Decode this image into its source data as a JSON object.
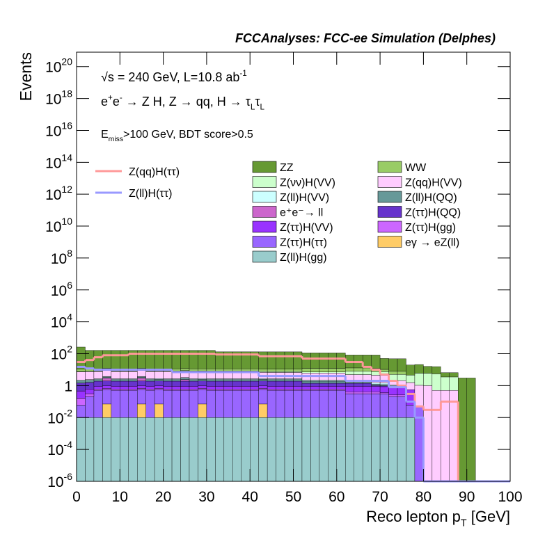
{
  "chart_data": {
    "type": "histogram",
    "title": "FCCAnalyses: FCC-ee Simulation (Delphes)",
    "annotations": [
      {
        "parts": [
          {
            "text": "√s = 240 GeV, L=10.8 ab"
          },
          {
            "text": "-1",
            "sup": true
          }
        ]
      },
      {
        "parts": [
          {
            "text": "e"
          },
          {
            "text": "+",
            "sup": true
          },
          {
            "text": "e"
          },
          {
            "text": "-",
            "sup": true
          },
          {
            "text": " → Z H, Z  → qq, H  → τ"
          },
          {
            "text": "L",
            "sub": true
          },
          {
            "text": "τ"
          },
          {
            "text": "L",
            "sub": true
          }
        ]
      },
      {
        "parts": [
          {
            "text": "E"
          },
          {
            "text": "miss",
            "sub": true
          },
          {
            "text": ">100 GeV, BDT score>0.5"
          }
        ]
      }
    ],
    "xlabel": {
      "parts": [
        {
          "text": "Reco lepton p"
        },
        {
          "text": "T",
          "sub": true
        },
        {
          "text": " [GeV]"
        }
      ]
    },
    "ylabel": "Events",
    "log_y": true,
    "xlim": [
      0,
      100
    ],
    "ylim": [
      1e-06,
      8e+20
    ],
    "xticks": [
      0,
      10,
      20,
      30,
      40,
      50,
      60,
      70,
      80,
      90,
      100
    ],
    "yticks": [
      {
        "value": 1e-06,
        "label": "10",
        "exponent": "-6"
      },
      {
        "value": 0.0001,
        "label": "10",
        "exponent": "-4"
      },
      {
        "value": 0.01,
        "label": "10",
        "exponent": "-2"
      },
      {
        "value": 1,
        "label": "1"
      },
      {
        "value": 100,
        "label": "10",
        "exponent": "2"
      },
      {
        "value": 10000.0,
        "label": "10",
        "exponent": "4"
      },
      {
        "value": 1000000.0,
        "label": "10",
        "exponent": "6"
      },
      {
        "value": 100000000.0,
        "label": "10",
        "exponent": "8"
      },
      {
        "value": 10000000000.0,
        "label": "10",
        "exponent": "10"
      },
      {
        "value": 1000000000000.0,
        "label": "10",
        "exponent": "12"
      },
      {
        "value": 100000000000000.0,
        "label": "10",
        "exponent": "14"
      },
      {
        "value": 1e+16,
        "label": "10",
        "exponent": "16"
      },
      {
        "value": 1e+18,
        "label": "10",
        "exponent": "18"
      },
      {
        "value": 1e+20,
        "label": "10",
        "exponent": "20"
      }
    ],
    "bins": [
      0,
      2,
      4,
      6,
      8,
      10,
      12,
      14,
      16,
      18,
      20,
      22,
      24,
      26,
      28,
      30,
      32,
      34,
      36,
      38,
      40,
      42,
      44,
      46,
      48,
      50,
      52,
      54,
      56,
      58,
      60,
      62,
      64,
      66,
      68,
      70,
      72,
      74,
      76,
      78,
      80,
      82,
      84,
      86,
      88,
      90,
      92,
      94,
      96,
      98,
      100
    ],
    "series": [
      {
        "name": "Z(ll)H(gg)",
        "color": "#99cccc",
        "values": [
          0.01,
          0.01,
          0.01,
          0.01,
          0.01,
          0.01,
          0.01,
          0.01,
          0.01,
          0.01,
          0.01,
          0.01,
          0.01,
          0.01,
          0.01,
          0.01,
          0.01,
          0.01,
          0.01,
          0.01,
          0.01,
          0.01,
          0.01,
          0.01,
          0.01,
          0.01,
          0.01,
          0.01,
          0.01,
          0.01,
          0.01,
          0.01,
          0.01,
          0.01,
          0.01,
          0.01,
          0.01,
          0.01,
          0.01,
          0,
          0,
          0,
          0,
          0,
          0,
          0,
          0,
          0,
          0,
          0
        ]
      },
      {
        "name": "eγ → eZ(ll)",
        "color": "#ffcc66",
        "values": [
          0,
          0,
          0,
          0.06,
          0,
          0,
          0,
          0.06,
          0,
          0.06,
          0,
          0,
          0,
          0,
          0.06,
          0,
          0,
          0,
          0,
          0,
          0,
          0.06,
          0,
          0,
          0,
          0,
          0,
          0,
          0,
          0,
          0,
          0,
          0,
          0,
          0,
          0,
          0,
          0,
          0,
          0,
          0,
          0,
          0,
          0,
          0,
          0,
          0,
          0,
          0,
          0
        ]
      },
      {
        "name": "Z(ττ)H(ττ)",
        "color": "#9966ff",
        "values": [
          0.05,
          0.2,
          0.5,
          0.5,
          0.5,
          0.5,
          0.5,
          0.5,
          0.5,
          0.5,
          0.5,
          0.5,
          0.5,
          0.5,
          0.5,
          0.5,
          0.5,
          0.5,
          0.5,
          0.5,
          0.5,
          0.5,
          0.5,
          0.5,
          0.5,
          0.5,
          0.5,
          0.5,
          0.5,
          0.5,
          0.5,
          0.3,
          0.3,
          0.3,
          0.3,
          0.3,
          0.2,
          0.2,
          0.05,
          0.05,
          0,
          0,
          0,
          0,
          0,
          0,
          0,
          0,
          0,
          0
        ]
      },
      {
        "name": "Z(ττ)H(gg)",
        "color": "#cc66ff",
        "values": [
          0.1,
          0.1,
          0.1,
          0.1,
          0.1,
          0.1,
          0.1,
          0.1,
          0.1,
          0.1,
          0.1,
          0.1,
          0.1,
          0.1,
          0.1,
          0.1,
          0.1,
          0.1,
          0.1,
          0.1,
          0.1,
          0.1,
          0.1,
          0.1,
          0.1,
          0.1,
          0.1,
          0.1,
          0.1,
          0.1,
          0.1,
          0.1,
          0.1,
          0.1,
          0.1,
          0.05,
          0.05,
          0.05,
          0,
          0,
          0,
          0,
          0,
          0,
          0,
          0,
          0,
          0,
          0,
          0
        ]
      },
      {
        "name": "Z(ττ)H(VV)",
        "color": "#9933ff",
        "values": [
          0.3,
          0.3,
          0.3,
          0.3,
          0.3,
          0.3,
          0.3,
          0.3,
          0.3,
          0.3,
          0.3,
          0.3,
          0.3,
          0.3,
          0.3,
          0.3,
          0.3,
          0.3,
          0.3,
          0.3,
          0.3,
          0.3,
          0.3,
          0.3,
          0.3,
          0.3,
          0.3,
          0.3,
          0.3,
          0.3,
          0.3,
          0.5,
          0.5,
          0.5,
          0.5,
          0.5,
          0.5,
          0.5,
          0.5,
          0,
          0,
          0,
          0,
          0,
          0,
          0,
          0,
          0,
          0,
          0
        ]
      },
      {
        "name": "Z(ττ)H(QQ)",
        "color": "#6633cc",
        "values": [
          1,
          1,
          1,
          1,
          1,
          1,
          1,
          1,
          1,
          1,
          1,
          1,
          1,
          1,
          1,
          1,
          1,
          1,
          1,
          1,
          1,
          1,
          1,
          1,
          1,
          1,
          0.5,
          0.5,
          0.5,
          0.5,
          0.5,
          0.5,
          0.5,
          0.5,
          0.1,
          0.1,
          0.1,
          0.1,
          0,
          0,
          0,
          0,
          0,
          0,
          0,
          0,
          0,
          0,
          0,
          0
        ]
      },
      {
        "name": "e⁺e⁻→ ll",
        "color": "#cc66cc",
        "values": [
          0,
          0,
          0,
          1,
          0,
          0,
          0,
          1,
          0,
          0,
          0,
          0,
          0.5,
          0,
          0,
          0,
          0,
          0,
          0,
          0,
          0,
          0,
          0,
          0,
          0,
          0,
          0,
          0,
          0,
          0,
          0,
          0,
          0,
          0,
          0,
          0,
          0,
          0,
          0,
          0,
          0,
          0,
          0,
          0,
          0,
          0,
          0,
          0,
          0,
          0
        ]
      },
      {
        "name": "Z(ll)H(QQ)",
        "color": "#669999",
        "values": [
          0.5,
          0.5,
          0.5,
          0.5,
          0.5,
          0.5,
          0.5,
          0.5,
          0.5,
          0.5,
          0.5,
          0.5,
          0.5,
          0.5,
          0.5,
          0.5,
          0.5,
          0.5,
          0.5,
          0.5,
          0.5,
          0.5,
          0.5,
          0.5,
          0.5,
          0.5,
          0.5,
          0.5,
          0.5,
          0.5,
          0.5,
          0.2,
          0.2,
          0.2,
          0.2,
          0.2,
          0.2,
          0.2,
          0,
          0,
          0,
          0,
          0,
          0,
          0,
          0,
          0,
          0,
          0,
          0
        ]
      },
      {
        "name": "Z(ll)H(VV)",
        "color": "#ccffff",
        "values": [
          0.3,
          0.3,
          0.3,
          0.3,
          0.3,
          0.3,
          0.3,
          0.3,
          0.3,
          0.3,
          0.3,
          0.3,
          0.3,
          0.3,
          0.3,
          0.3,
          0.3,
          0.3,
          0.3,
          0.3,
          0.3,
          0.3,
          0.3,
          0.3,
          0.3,
          0.3,
          0.3,
          0.3,
          0.3,
          0.3,
          0.3,
          0.3,
          0.3,
          0.3,
          0.3,
          0.3,
          0,
          0,
          0,
          0,
          0,
          0,
          0,
          0,
          0,
          0,
          0,
          0,
          0,
          0
        ]
      },
      {
        "name": "Z(qq)H(VV)",
        "color": "#ffccff",
        "values": [
          5,
          5,
          5,
          5,
          5,
          5,
          5,
          5,
          5,
          5,
          5,
          5,
          5,
          5,
          5,
          5,
          5,
          5,
          5,
          5,
          5,
          4,
          4,
          4,
          4,
          4,
          4,
          4,
          4,
          4,
          4,
          3,
          3,
          3,
          3,
          3,
          1,
          1,
          1,
          1,
          1,
          0.5,
          0.5,
          0.5,
          0,
          0,
          0,
          0,
          0,
          0
        ]
      },
      {
        "name": "Z(νν)H(VV)",
        "color": "#ccffcc",
        "values": [
          0.5,
          0.5,
          0.5,
          0.5,
          0.5,
          0.5,
          0.5,
          0.5,
          0.5,
          0.5,
          0.5,
          0.5,
          0.5,
          0.5,
          0.5,
          0.5,
          0.5,
          0.5,
          0.5,
          0.5,
          0.5,
          1,
          1,
          1,
          1,
          1,
          1,
          1,
          1,
          1,
          1,
          3,
          3,
          3,
          3,
          3,
          3,
          3,
          3,
          5,
          5,
          5,
          3,
          3,
          0,
          0,
          0,
          0,
          0,
          0
        ]
      },
      {
        "name": "WW",
        "color": "#99cc66",
        "values": [
          3,
          3,
          3,
          3,
          3,
          3,
          3,
          3,
          3,
          3,
          3,
          3,
          3,
          3,
          3,
          3,
          3,
          3,
          3,
          3,
          3,
          3,
          3,
          3,
          3,
          3,
          5,
          5,
          5,
          5,
          5,
          5,
          5,
          5,
          5,
          3,
          3,
          3,
          0,
          0,
          0,
          0,
          0,
          0,
          0,
          0,
          0,
          0,
          0,
          0
        ]
      },
      {
        "name": "ZZ",
        "color": "#669933",
        "values": [
          250,
          150,
          150,
          150,
          150,
          150,
          150,
          150,
          150,
          150,
          150,
          150,
          150,
          150,
          150,
          150,
          120,
          120,
          120,
          120,
          120,
          120,
          120,
          120,
          120,
          120,
          100,
          100,
          100,
          100,
          100,
          70,
          70,
          70,
          70,
          40,
          40,
          40,
          15,
          15,
          10,
          10,
          3,
          3,
          3,
          3,
          0,
          0,
          0,
          0
        ]
      }
    ],
    "lines": [
      {
        "name": "Z(qq)H(ττ)",
        "color": "#ff9999",
        "values": [
          30,
          40,
          60,
          80,
          80,
          80,
          100,
          100,
          100,
          100,
          100,
          100,
          100,
          100,
          100,
          100,
          90,
          90,
          90,
          90,
          90,
          70,
          70,
          70,
          70,
          70,
          50,
          50,
          50,
          50,
          50,
          30,
          30,
          15,
          10,
          5,
          2,
          1,
          0.3,
          0.05,
          0.03,
          0.03,
          0.1,
          0.1,
          0,
          0,
          0,
          0,
          0,
          0
        ]
      },
      {
        "name": "Z(ll)H(ττ)",
        "color": "#9999ff",
        "values": [
          15,
          12,
          10,
          10,
          10,
          10,
          10,
          10,
          10,
          10,
          10,
          7,
          7,
          7,
          7,
          7,
          7,
          7,
          7,
          7,
          7,
          4,
          4,
          4,
          4,
          4,
          4,
          4,
          4,
          4,
          4,
          2,
          2,
          2,
          2,
          2,
          0.8,
          0.8,
          0.1,
          0.01,
          0,
          0,
          0,
          0,
          0,
          0,
          0,
          0,
          0,
          0
        ]
      }
    ]
  }
}
